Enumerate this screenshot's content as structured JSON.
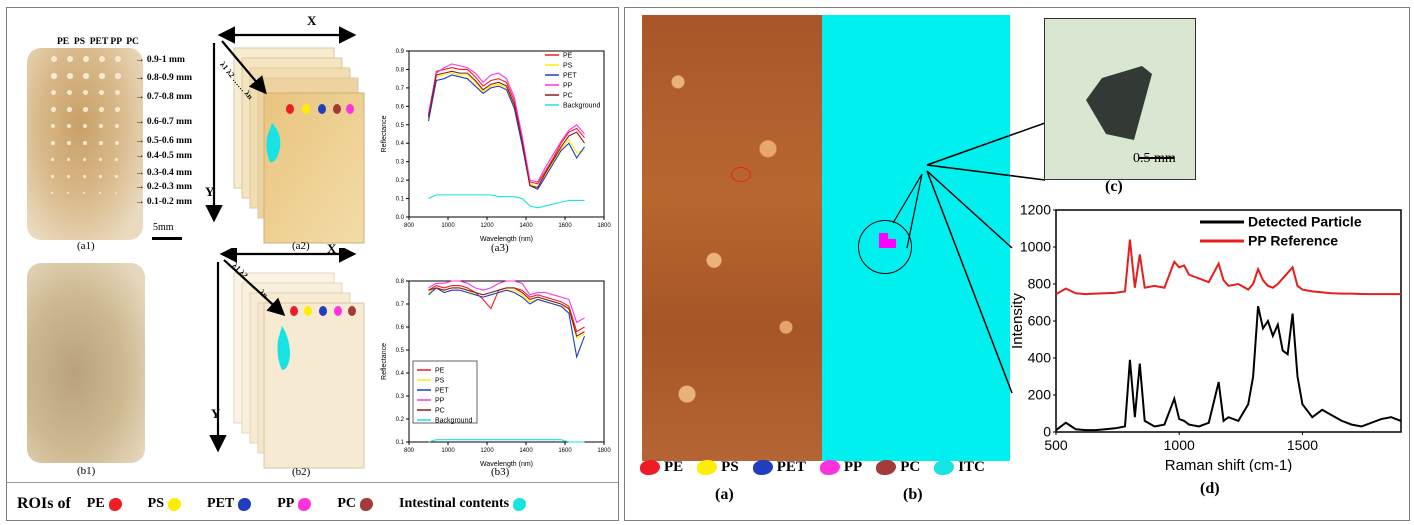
{
  "left": {
    "a1": {
      "caption": "(a1)",
      "header": "PE  PS  PET PP  PC",
      "sizes": [
        "0.9-1 mm",
        "0.8-0.9 mm",
        "0.7-0.8 mm",
        "0.6-0.7 mm",
        "0.5-0.6 mm",
        "0.4-0.5 mm",
        "0.3-0.4 mm",
        "0.2-0.3 mm",
        "0.1-0.2 mm"
      ],
      "scalebar": "5mm"
    },
    "a2": {
      "caption": "(a2)",
      "x_label": "X",
      "y_label": "Y",
      "lambda_label": "λ1 λ2 …… λn"
    },
    "b1": {
      "caption": "(b1)"
    },
    "b2": {
      "caption": "(b2)",
      "x_label": "X",
      "y_label": "Y",
      "lambda_label": "λ1 λ2 …… λn"
    },
    "a3": {
      "caption": "(a3)"
    },
    "b3": {
      "caption": "(b3)"
    },
    "roi_legend": {
      "prefix": "ROIs of",
      "items": [
        {
          "label": "PE",
          "color": "#ee1c24"
        },
        {
          "label": "PS",
          "color": "#ffee00"
        },
        {
          "label": "PET",
          "color": "#1f3fbf"
        },
        {
          "label": "PP",
          "color": "#ff33dd"
        },
        {
          "label": "PC",
          "color": "#a33a3a"
        },
        {
          "label": "Intestinal contents",
          "color": "#18e2e2"
        }
      ]
    }
  },
  "right": {
    "a": {
      "caption": "(a)"
    },
    "b": {
      "caption": "(b)"
    },
    "c": {
      "caption": "(c)",
      "scalebar": "0.5 mm"
    },
    "d": {
      "caption": "(d)"
    },
    "class_legend": [
      {
        "label": "PE",
        "color": "#ee1c24"
      },
      {
        "label": "PS",
        "color": "#ffee00"
      },
      {
        "label": "PET",
        "color": "#1f3fbf"
      },
      {
        "label": "PP",
        "color": "#ff33dd"
      },
      {
        "label": "PC",
        "color": "#a33a3a"
      },
      {
        "label": "ITC",
        "color": "#18e2e2"
      }
    ]
  },
  "chart_data": [
    {
      "id": "a3",
      "type": "line",
      "xlabel": "Wavelength (nm)",
      "ylabel": "Reflectance",
      "xlim": [
        800,
        1800
      ],
      "ylim": [
        0.0,
        0.9
      ],
      "xticks": [
        800,
        1000,
        1200,
        1400,
        1600,
        1800
      ],
      "yticks": [
        0.0,
        0.1,
        0.2,
        0.3,
        0.4,
        0.5,
        0.6,
        0.7,
        0.8,
        0.9
      ],
      "legend_position": "top-right",
      "x": [
        900,
        940,
        980,
        1020,
        1060,
        1100,
        1140,
        1180,
        1220,
        1260,
        1300,
        1340,
        1380,
        1420,
        1460,
        1500,
        1540,
        1580,
        1620,
        1660,
        1700
      ],
      "series": [
        {
          "name": "PE",
          "color": "#ee1c24",
          "values": [
            0.55,
            0.79,
            0.8,
            0.81,
            0.8,
            0.8,
            0.76,
            0.71,
            0.74,
            0.75,
            0.73,
            0.63,
            0.42,
            0.19,
            0.18,
            0.25,
            0.32,
            0.4,
            0.46,
            0.48,
            0.43
          ]
        },
        {
          "name": "PS",
          "color": "#ffee00",
          "values": [
            0.53,
            0.76,
            0.77,
            0.78,
            0.77,
            0.77,
            0.73,
            0.68,
            0.71,
            0.72,
            0.7,
            0.6,
            0.4,
            0.18,
            0.16,
            0.23,
            0.3,
            0.37,
            0.42,
            0.35,
            0.36
          ]
        },
        {
          "name": "PET",
          "color": "#1f3fbf",
          "values": [
            0.52,
            0.74,
            0.75,
            0.77,
            0.76,
            0.75,
            0.71,
            0.67,
            0.7,
            0.71,
            0.69,
            0.59,
            0.39,
            0.17,
            0.15,
            0.22,
            0.29,
            0.36,
            0.4,
            0.32,
            0.38
          ]
        },
        {
          "name": "PP",
          "color": "#ff33dd",
          "values": [
            0.56,
            0.78,
            0.81,
            0.83,
            0.82,
            0.81,
            0.78,
            0.73,
            0.77,
            0.78,
            0.75,
            0.65,
            0.44,
            0.2,
            0.19,
            0.27,
            0.34,
            0.41,
            0.47,
            0.5,
            0.45
          ]
        },
        {
          "name": "PC",
          "color": "#8b1a1a",
          "values": [
            0.54,
            0.77,
            0.78,
            0.79,
            0.78,
            0.78,
            0.74,
            0.69,
            0.72,
            0.73,
            0.71,
            0.61,
            0.41,
            0.17,
            0.16,
            0.24,
            0.31,
            0.38,
            0.44,
            0.46,
            0.4
          ]
        },
        {
          "name": "Background",
          "color": "#18e2e2",
          "values": [
            0.1,
            0.12,
            0.12,
            0.12,
            0.12,
            0.12,
            0.12,
            0.12,
            0.12,
            0.11,
            0.11,
            0.11,
            0.1,
            0.06,
            0.05,
            0.06,
            0.07,
            0.08,
            0.09,
            0.09,
            0.09
          ]
        }
      ]
    },
    {
      "id": "b3",
      "type": "line",
      "xlabel": "Wavelength (nm)",
      "ylabel": "Reflectance",
      "xlim": [
        800,
        1800
      ],
      "ylim": [
        0.1,
        0.8
      ],
      "xticks": [
        800,
        1000,
        1200,
        1400,
        1600,
        1800
      ],
      "yticks": [
        0.1,
        0.2,
        0.3,
        0.4,
        0.5,
        0.6,
        0.7,
        0.8
      ],
      "legend_position": "bottom-left",
      "x": [
        900,
        940,
        980,
        1020,
        1060,
        1100,
        1140,
        1180,
        1220,
        1260,
        1300,
        1340,
        1380,
        1420,
        1460,
        1500,
        1540,
        1580,
        1620,
        1660,
        1700
      ],
      "series": [
        {
          "name": "PE",
          "color": "#ee1c24",
          "values": [
            0.76,
            0.78,
            0.77,
            0.78,
            0.78,
            0.77,
            0.75,
            0.72,
            0.68,
            0.76,
            0.77,
            0.77,
            0.76,
            0.73,
            0.74,
            0.73,
            0.72,
            0.71,
            0.69,
            0.58,
            0.6
          ]
        },
        {
          "name": "PS",
          "color": "#ffee00",
          "values": [
            0.75,
            0.77,
            0.76,
            0.77,
            0.77,
            0.76,
            0.74,
            0.73,
            0.74,
            0.75,
            0.76,
            0.76,
            0.74,
            0.71,
            0.72,
            0.71,
            0.7,
            0.69,
            0.68,
            0.55,
            0.57
          ]
        },
        {
          "name": "PET",
          "color": "#1f3fbf",
          "values": [
            0.74,
            0.77,
            0.75,
            0.76,
            0.76,
            0.75,
            0.74,
            0.73,
            0.74,
            0.75,
            0.76,
            0.75,
            0.73,
            0.7,
            0.72,
            0.71,
            0.7,
            0.69,
            0.66,
            0.47,
            0.56
          ]
        },
        {
          "name": "PP",
          "color": "#ff33dd",
          "values": [
            0.77,
            0.79,
            0.79,
            0.8,
            0.8,
            0.79,
            0.77,
            0.76,
            0.77,
            0.79,
            0.8,
            0.8,
            0.79,
            0.74,
            0.75,
            0.75,
            0.74,
            0.73,
            0.72,
            0.62,
            0.64
          ]
        },
        {
          "name": "PC",
          "color": "#8b1a1a",
          "values": [
            0.76,
            0.77,
            0.76,
            0.77,
            0.77,
            0.76,
            0.75,
            0.74,
            0.75,
            0.76,
            0.77,
            0.77,
            0.75,
            0.72,
            0.73,
            0.72,
            0.71,
            0.7,
            0.68,
            0.56,
            0.58
          ]
        },
        {
          "name": "Background",
          "color": "#18e2e2",
          "values": [
            0.1,
            0.11,
            0.11,
            0.11,
            0.11,
            0.11,
            0.11,
            0.11,
            0.11,
            0.11,
            0.11,
            0.11,
            0.11,
            0.11,
            0.11,
            0.11,
            0.11,
            0.11,
            0.1,
            0.1,
            0.1
          ]
        }
      ]
    },
    {
      "id": "d",
      "type": "line",
      "xlabel": "Raman shift (cm-1)",
      "ylabel": "Intensity",
      "xlim": [
        500,
        1900
      ],
      "ylim": [
        0,
        1200
      ],
      "xticks": [
        500,
        1000,
        1500
      ],
      "yticks": [
        0,
        200,
        400,
        600,
        800,
        1000,
        1200
      ],
      "legend_position": "top-right",
      "x": [
        500,
        540,
        580,
        620,
        660,
        700,
        740,
        780,
        800,
        820,
        840,
        860,
        900,
        940,
        980,
        1000,
        1020,
        1040,
        1080,
        1120,
        1160,
        1180,
        1200,
        1240,
        1280,
        1300,
        1320,
        1340,
        1360,
        1380,
        1400,
        1420,
        1440,
        1460,
        1480,
        1500,
        1540,
        1580,
        1620,
        1660,
        1700,
        1740,
        1780,
        1820,
        1860,
        1900
      ],
      "series": [
        {
          "name": "Detected Particle",
          "color": "#000000",
          "values": [
            10,
            50,
            15,
            10,
            10,
            15,
            20,
            30,
            390,
            80,
            370,
            60,
            30,
            40,
            180,
            70,
            60,
            40,
            30,
            50,
            270,
            60,
            80,
            60,
            150,
            300,
            680,
            560,
            600,
            520,
            580,
            440,
            420,
            640,
            300,
            150,
            80,
            120,
            90,
            60,
            40,
            30,
            50,
            70,
            80,
            60
          ]
        },
        {
          "name": "PP Reference",
          "color": "#e81e1e",
          "values": [
            745,
            775,
            750,
            745,
            748,
            750,
            752,
            760,
            1040,
            780,
            960,
            780,
            790,
            780,
            920,
            890,
            900,
            850,
            830,
            810,
            910,
            820,
            790,
            800,
            770,
            800,
            880,
            820,
            790,
            780,
            800,
            830,
            860,
            890,
            790,
            770,
            760,
            755,
            750,
            748,
            748,
            746,
            745,
            745,
            745,
            745
          ]
        }
      ]
    }
  ]
}
